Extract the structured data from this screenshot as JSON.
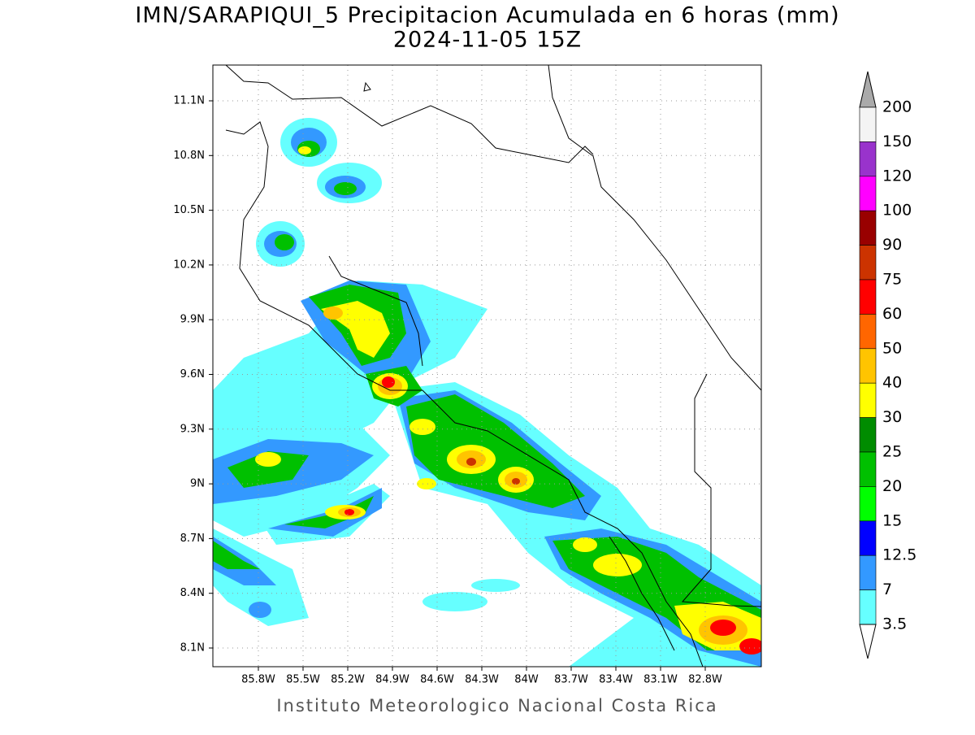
{
  "title": "IMN/SARAPIQUI_5 Precipitacion Acumulada en 6 horas (mm)",
  "subtitle": "2024-11-05 15Z",
  "map": {
    "lat_labels": [
      "11.1N",
      "10.8N",
      "10.5N",
      "10.2N",
      "9.9N",
      "9.6N",
      "9.3N",
      "9N",
      "8.7N",
      "8.4N",
      "8.1N"
    ],
    "lon_labels": [
      "85.8W",
      "85.5W",
      "85.2W",
      "84.9W",
      "84.6W",
      "84.3W",
      "84W",
      "83.7W",
      "83.4W",
      "83.1W",
      "82.8W"
    ]
  },
  "colorbar": {
    "levels": [
      200,
      150,
      120,
      100,
      90,
      75,
      60,
      50,
      40,
      30,
      25,
      20,
      15,
      12.5,
      7,
      3.5
    ],
    "colors": [
      "#f4f4f4",
      "#9933cc",
      "#ff00ff",
      "#990000",
      "#cc3300",
      "#ff0000",
      "#ff6600",
      "#ffc400",
      "#ffff00",
      "#008c00",
      "#00c000",
      "#00ff00",
      "#0000ff",
      "#3399ff",
      "#66ffff"
    ],
    "over_color": "#aaaaaa",
    "under_color": "#ffffff"
  },
  "footer": "Instituto Meteorologico Nacional Costa Rica"
}
